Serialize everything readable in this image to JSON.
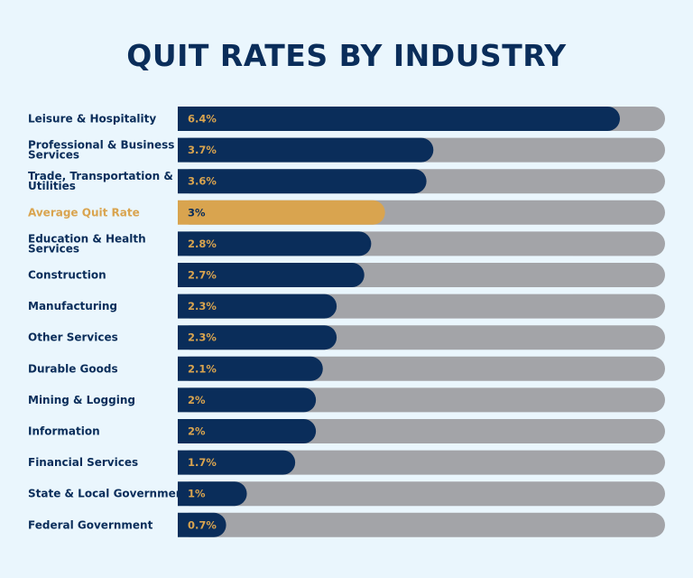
{
  "chart_data": {
    "type": "bar",
    "orientation": "horizontal",
    "title": "QUIT RATES BY INDUSTRY",
    "xlabel": "",
    "ylabel": "",
    "xlim": [
      0,
      7
    ],
    "value_suffix": "%",
    "highlight_category": "Average Quit Rate",
    "categories": [
      "Leisure & Hospitality",
      "Professional & Business Services",
      "Trade, Transportation & Utilities",
      "Average Quit Rate",
      "Education & Health Services",
      "Construction",
      "Manufacturing",
      "Other Services",
      "Durable Goods",
      "Mining & Logging",
      "Information",
      "Financial Services",
      "State & Local Government",
      "Federal Government"
    ],
    "value_labels": [
      "6.4%",
      "3.7%",
      "3.6%",
      "3%",
      "2.8%",
      "2.7%",
      "2.3%",
      "2.3%",
      "2.1%",
      "2%",
      "2%",
      "1.7%",
      "1%",
      "0.7%"
    ],
    "values": [
      6.4,
      3.7,
      3.6,
      3,
      2.8,
      2.7,
      2.3,
      2.3,
      2.1,
      2,
      2,
      1.7,
      1,
      0.7
    ],
    "colors": {
      "background": "#eaf6fd",
      "bar": "#0a2d5a",
      "highlight_bar": "#d9a44f",
      "track": "#a3a4a8",
      "label": "#0a2d5a",
      "highlight_label": "#d9a44f",
      "value_text": "#d9a44f",
      "highlight_value_text": "#0a2d5a"
    }
  }
}
